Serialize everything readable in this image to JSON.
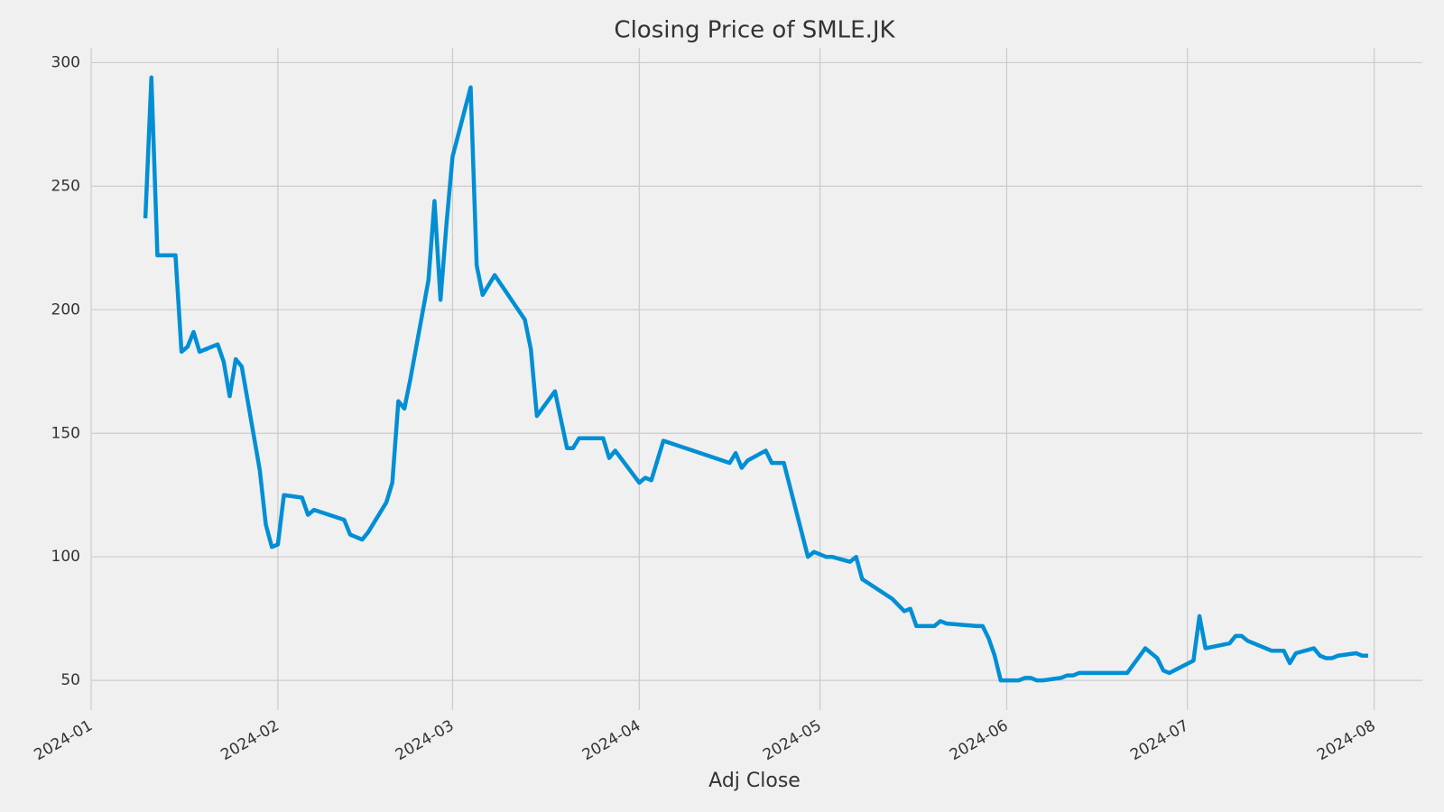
{
  "chart_data": {
    "type": "line",
    "title": "Closing Price of SMLE.JK",
    "x_label": "Adj Close",
    "x": [
      "2024-01-10",
      "2024-01-11",
      "2024-01-12",
      "2024-01-15",
      "2024-01-16",
      "2024-01-17",
      "2024-01-18",
      "2024-01-19",
      "2024-01-22",
      "2024-01-23",
      "2024-01-24",
      "2024-01-25",
      "2024-01-26",
      "2024-01-29",
      "2024-01-30",
      "2024-01-31",
      "2024-02-01",
      "2024-02-02",
      "2024-02-05",
      "2024-02-06",
      "2024-02-07",
      "2024-02-12",
      "2024-02-13",
      "2024-02-15",
      "2024-02-16",
      "2024-02-19",
      "2024-02-20",
      "2024-02-21",
      "2024-02-22",
      "2024-02-23",
      "2024-02-26",
      "2024-02-27",
      "2024-02-28",
      "2024-02-29",
      "2024-03-01",
      "2024-03-04",
      "2024-03-05",
      "2024-03-06",
      "2024-03-08",
      "2024-03-13",
      "2024-03-14",
      "2024-03-15",
      "2024-03-18",
      "2024-03-20",
      "2024-03-21",
      "2024-03-22",
      "2024-03-26",
      "2024-03-27",
      "2024-03-28",
      "2024-04-01",
      "2024-04-02",
      "2024-04-03",
      "2024-04-05",
      "2024-04-16",
      "2024-04-17",
      "2024-04-18",
      "2024-04-19",
      "2024-04-22",
      "2024-04-23",
      "2024-04-25",
      "2024-04-29",
      "2024-04-30",
      "2024-05-02",
      "2024-05-03",
      "2024-05-06",
      "2024-05-07",
      "2024-05-08",
      "2024-05-13",
      "2024-05-15",
      "2024-05-16",
      "2024-05-17",
      "2024-05-20",
      "2024-05-21",
      "2024-05-22",
      "2024-05-27",
      "2024-05-28",
      "2024-05-29",
      "2024-05-30",
      "2024-05-31",
      "2024-06-03",
      "2024-06-04",
      "2024-06-05",
      "2024-06-06",
      "2024-06-07",
      "2024-06-10",
      "2024-06-11",
      "2024-06-12",
      "2024-06-13",
      "2024-06-14",
      "2024-06-21",
      "2024-06-24",
      "2024-06-26",
      "2024-06-27",
      "2024-06-28",
      "2024-07-02",
      "2024-07-03",
      "2024-07-04",
      "2024-07-08",
      "2024-07-09",
      "2024-07-10",
      "2024-07-11",
      "2024-07-15",
      "2024-07-17",
      "2024-07-18",
      "2024-07-19",
      "2024-07-22",
      "2024-07-23",
      "2024-07-24",
      "2024-07-25",
      "2024-07-26",
      "2024-07-29",
      "2024-07-30",
      "2024-07-31"
    ],
    "values": [
      237,
      294,
      222,
      222,
      183,
      185,
      191,
      183,
      186,
      179,
      165,
      180,
      177,
      135,
      113,
      104,
      105,
      125,
      124,
      117,
      119,
      115,
      109,
      107,
      110,
      122,
      130,
      163,
      160,
      172,
      212,
      244,
      204,
      235,
      262,
      290,
      218,
      206,
      214,
      196,
      184,
      157,
      167,
      144,
      144,
      148,
      148,
      140,
      143,
      130,
      132,
      131,
      147,
      138,
      142,
      136,
      139,
      143,
      138,
      138,
      100,
      102,
      100,
      100,
      98,
      100,
      91,
      83,
      78,
      79,
      72,
      72,
      74,
      73,
      72,
      72,
      67,
      60,
      50,
      50,
      51,
      51,
      50,
      50,
      51,
      52,
      52,
      53,
      53,
      53,
      63,
      59,
      54,
      53,
      58,
      76,
      63,
      65,
      68,
      68,
      66,
      62,
      62,
      57,
      61,
      63,
      60,
      59,
      59,
      60,
      61,
      60,
      60
    ],
    "color": "#008fd5",
    "xlim": [
      "2024-01-01",
      "2024-08-09"
    ],
    "xticks": [
      {
        "value": "2024-01-01",
        "label": "2024-01"
      },
      {
        "value": "2024-02-01",
        "label": "2024-02"
      },
      {
        "value": "2024-03-01",
        "label": "2024-03"
      },
      {
        "value": "2024-04-01",
        "label": "2024-04"
      },
      {
        "value": "2024-05-01",
        "label": "2024-05"
      },
      {
        "value": "2024-06-01",
        "label": "2024-06"
      },
      {
        "value": "2024-07-01",
        "label": "2024-07"
      },
      {
        "value": "2024-08-01",
        "label": "2024-08"
      }
    ],
    "ylim": [
      38,
      306
    ],
    "yticks": [
      50,
      100,
      150,
      200,
      250,
      300
    ],
    "grid": true
  }
}
